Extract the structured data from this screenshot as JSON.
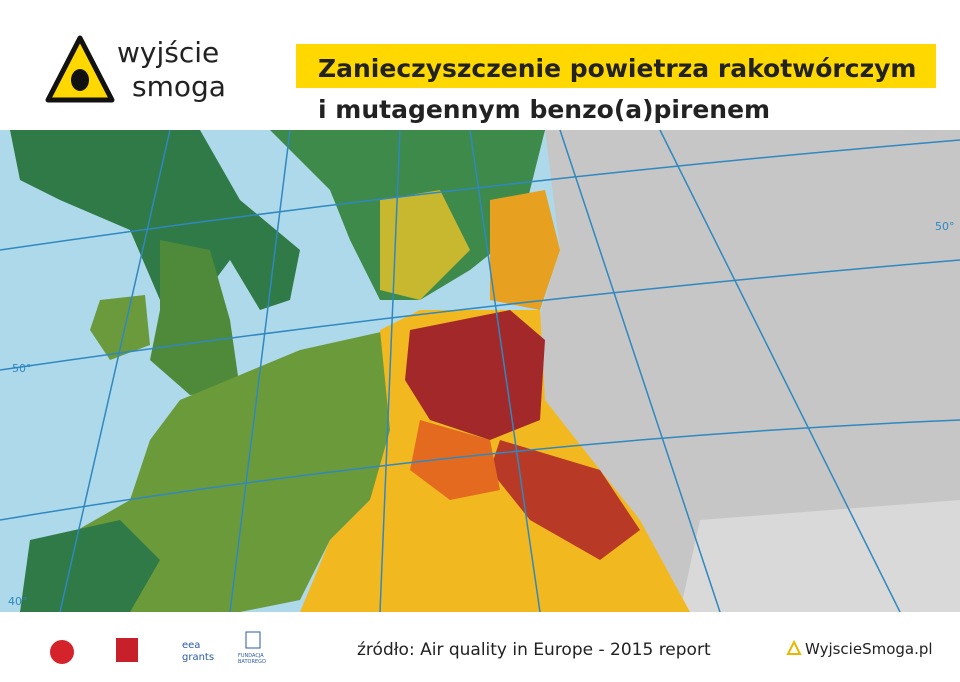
{
  "logo": {
    "line1": "wyjście",
    "line2": "smoga"
  },
  "title": {
    "line1": "Zanieczyszczenie powietrza rakotwórczym",
    "line2": "i mutagennym benzo(a)pirenem"
  },
  "map": {
    "grid_labels": [
      "50°",
      "50°",
      "40°"
    ]
  },
  "footer": {
    "source": "źródło: Air quality in Europe - 2015 report",
    "site": "WyjscieSmoga.pl",
    "sponsors": [
      "eea",
      "grants",
      "FUNDACJA",
      "BATOREGO"
    ]
  }
}
